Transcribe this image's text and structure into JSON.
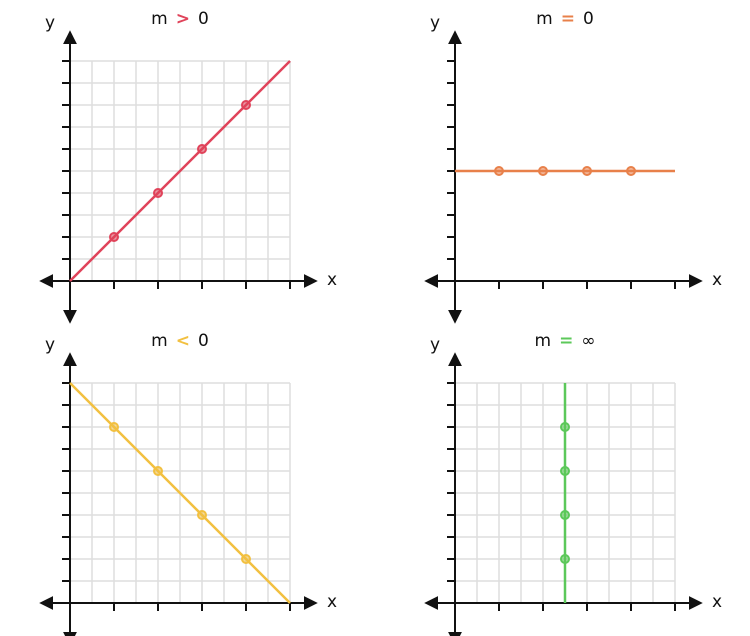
{
  "chart_data": [
    {
      "type": "line",
      "title": [
        "m",
        ">",
        "0"
      ],
      "xlabel": "x",
      "ylabel": "y",
      "color": "#e0435a",
      "xlim": [
        0,
        10
      ],
      "ylim": [
        0,
        10
      ],
      "xticks": [
        2,
        4,
        6,
        8,
        10
      ],
      "yticks": [
        1,
        2,
        3,
        4,
        5,
        6,
        7,
        8,
        9,
        10
      ],
      "grid": true,
      "line": {
        "x": [
          0,
          10
        ],
        "values": [
          0,
          10
        ]
      },
      "points": {
        "x": [
          2,
          4,
          6,
          8
        ],
        "values": [
          2,
          4,
          6,
          8
        ]
      }
    },
    {
      "type": "line",
      "title": [
        "m",
        "=",
        "0"
      ],
      "xlabel": "x",
      "ylabel": "y",
      "color": "#e8804a",
      "xlim": [
        0,
        10
      ],
      "ylim": [
        0,
        10
      ],
      "xticks": [
        2,
        4,
        6,
        8,
        10
      ],
      "yticks": [
        1,
        2,
        3,
        4,
        5,
        6,
        7,
        8,
        9,
        10
      ],
      "grid": false,
      "line": {
        "x": [
          0,
          10
        ],
        "values": [
          5,
          5
        ]
      },
      "points": {
        "x": [
          2,
          4,
          6,
          8
        ],
        "values": [
          5,
          5,
          5,
          5
        ]
      }
    },
    {
      "type": "line",
      "title": [
        "m",
        "<",
        "0"
      ],
      "xlabel": "x",
      "ylabel": "y",
      "color": "#f2c040",
      "xlim": [
        0,
        10
      ],
      "ylim": [
        0,
        10
      ],
      "xticks": [
        2,
        4,
        6,
        8,
        10
      ],
      "yticks": [
        1,
        2,
        3,
        4,
        5,
        6,
        7,
        8,
        9,
        10
      ],
      "grid": true,
      "line": {
        "x": [
          0,
          10
        ],
        "values": [
          10,
          0
        ]
      },
      "points": {
        "x": [
          2,
          4,
          6,
          8
        ],
        "values": [
          8,
          6,
          4,
          2
        ]
      }
    },
    {
      "type": "line",
      "title": [
        "m",
        "=",
        "∞"
      ],
      "xlabel": "x",
      "ylabel": "y",
      "color": "#5cc85a",
      "xlim": [
        0,
        10
      ],
      "ylim": [
        0,
        10
      ],
      "xticks": [
        2,
        4,
        6,
        8,
        10
      ],
      "yticks": [
        1,
        2,
        3,
        4,
        5,
        6,
        7,
        8,
        9,
        10
      ],
      "grid": true,
      "line": {
        "x": [
          5,
          5
        ],
        "values": [
          0,
          10
        ]
      },
      "points": {
        "x": [
          5,
          5,
          5,
          5
        ],
        "values": [
          2,
          4,
          6,
          8
        ]
      }
    }
  ]
}
